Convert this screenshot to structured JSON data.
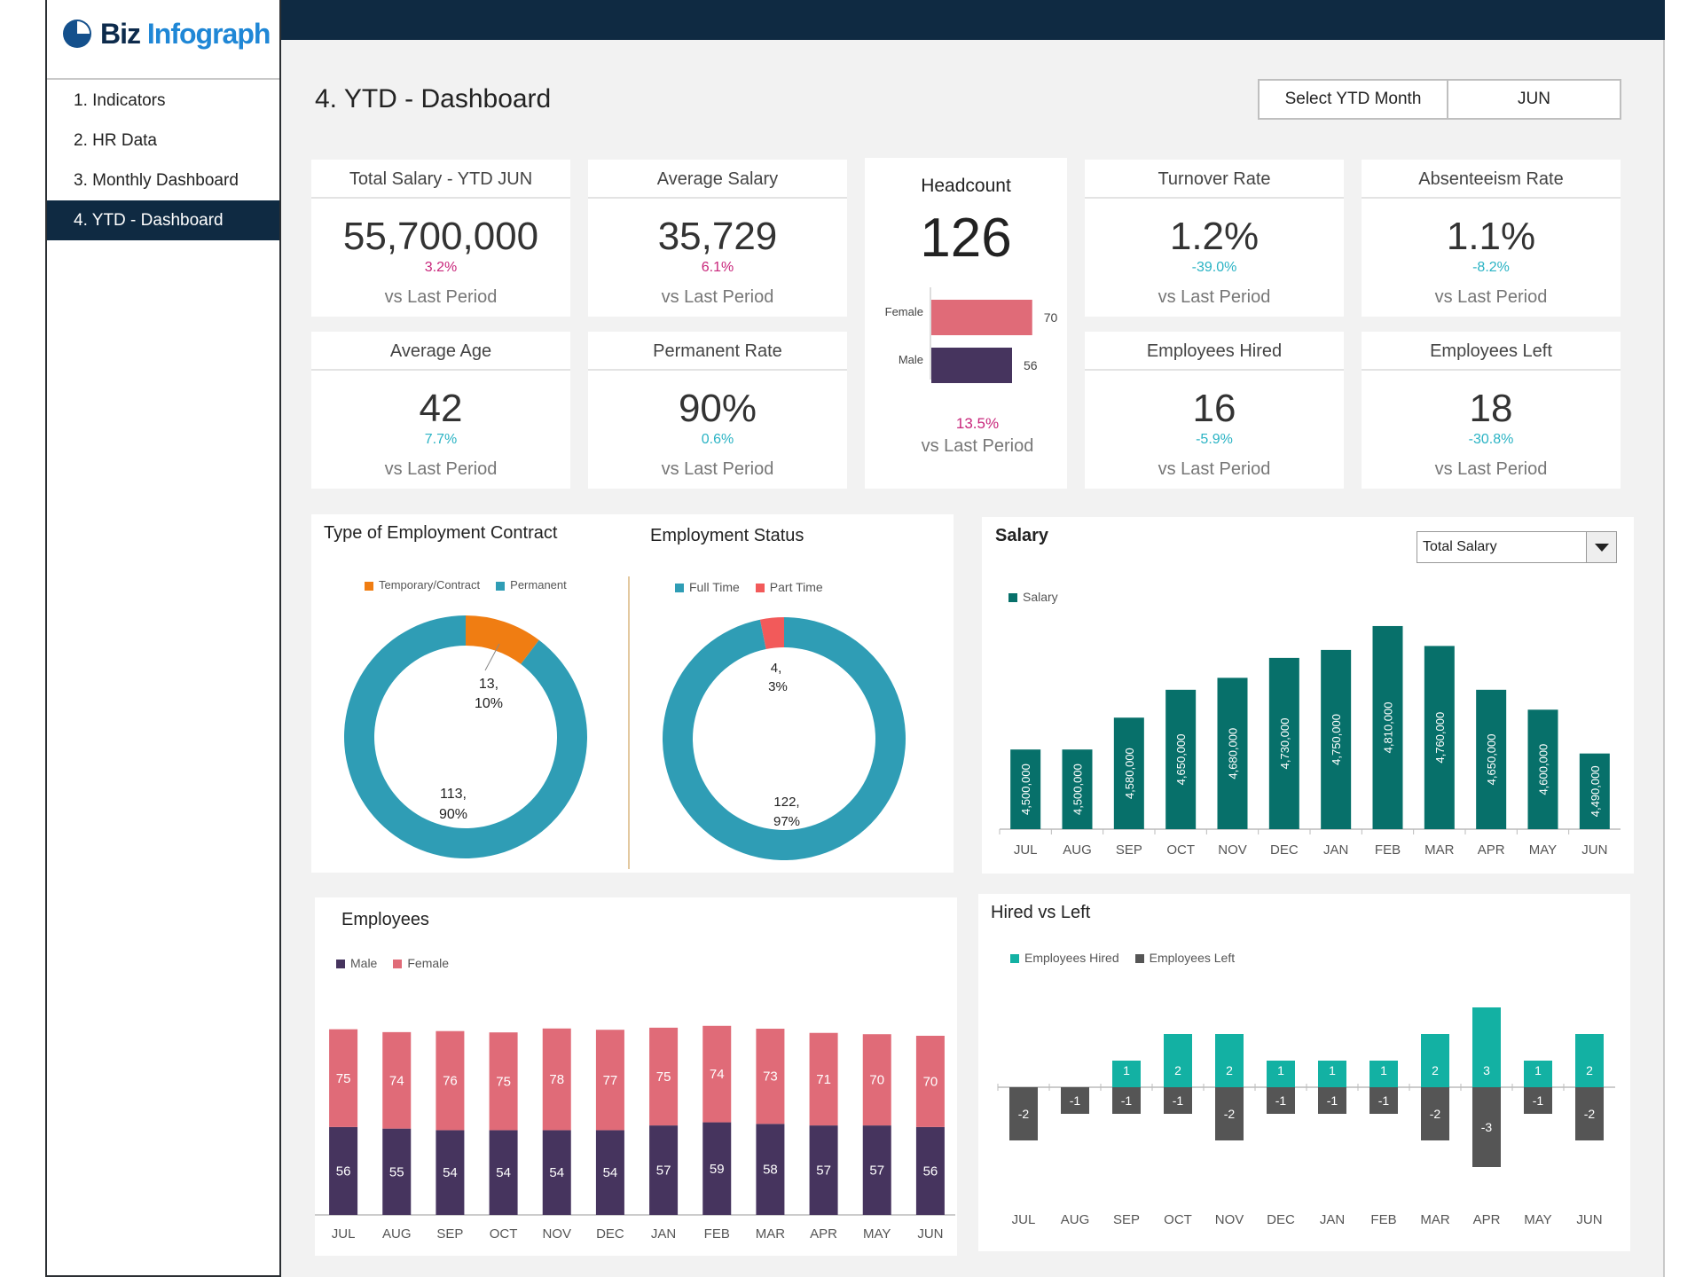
{
  "brand": {
    "name_part1": "Biz",
    "name_part2": "Infograph"
  },
  "nav": {
    "items": [
      {
        "label": "1. Indicators"
      },
      {
        "label": "2. HR Data"
      },
      {
        "label": "3. Monthly Dashboard"
      },
      {
        "label": "4. YTD - Dashboard"
      }
    ],
    "active_index": 3
  },
  "header": {
    "title": "4. YTD - Dashboard",
    "select_label": "Select YTD Month",
    "select_value": "JUN"
  },
  "kpis": {
    "total_salary": {
      "title": "Total Salary - YTD JUN",
      "value": "55,700,000",
      "change": "3.2%",
      "foot": "vs Last Period"
    },
    "average_salary": {
      "title": "Average Salary",
      "value": "35,729",
      "change": "6.1%",
      "foot": "vs Last Period"
    },
    "turnover_rate": {
      "title": "Turnover Rate",
      "value": "1.2%",
      "change": "-39.0%",
      "foot": "vs Last Period"
    },
    "absenteeism_rate": {
      "title": "Absenteeism Rate",
      "value": "1.1%",
      "change": "-8.2%",
      "foot": "vs Last Period"
    },
    "average_age": {
      "title": "Average Age",
      "value": "42",
      "change": "7.7%",
      "foot": "vs Last Period"
    },
    "permanent_rate": {
      "title": "Permanent Rate",
      "value": "90%",
      "change": "0.6%",
      "foot": "vs Last Period"
    },
    "employees_hired": {
      "title": "Employees Hired",
      "value": "16",
      "change": "-5.9%",
      "foot": "vs Last Period"
    },
    "employees_left": {
      "title": "Employees Left",
      "value": "18",
      "change": "-30.8%",
      "foot": "vs Last Period"
    }
  },
  "headcount": {
    "title": "Headcount",
    "value": "126",
    "change": "13.5%",
    "foot": "vs Last Period",
    "bars": [
      {
        "label": "Female",
        "value": 70,
        "value_text": "70",
        "color": "#e06b78"
      },
      {
        "label": "Male",
        "value": 56,
        "value_text": "56",
        "color": "#46345e"
      }
    ]
  },
  "colors": {
    "teal": "#2f9db5",
    "orange": "#f07d12",
    "red": "#f25a5a",
    "dark_teal": "#07706a",
    "bright_teal": "#13b1a3",
    "gray": "#555555",
    "male": "#46345e",
    "female": "#e06b78",
    "pink_change": "#c8267b",
    "teal_change": "#2ab3c4"
  },
  "contract": {
    "title": "Type of Employment Contract",
    "legend": [
      "Temporary/Contract",
      "Permanent"
    ],
    "temp_label_1": "13,",
    "temp_label_2": "10%",
    "perm_label_1": "113,",
    "perm_label_2": "90%"
  },
  "status": {
    "title": "Employment Status",
    "legend": [
      "Full Time",
      "Part Time"
    ],
    "part_label_1": "4,",
    "part_label_2": "3%",
    "full_label_1": "122,",
    "full_label_2": "97%"
  },
  "salary_panel": {
    "title": "Salary",
    "dropdown_value": "Total Salary",
    "legend": "Salary"
  },
  "employees_panel": {
    "title": "Employees",
    "legend": [
      "Male",
      "Female"
    ]
  },
  "hired_left_panel": {
    "title": "Hired vs Left",
    "legend": [
      "Employees Hired",
      "Employees Left"
    ]
  },
  "chart_data": [
    {
      "type": "pie",
      "title": "Type of Employment Contract",
      "categories": [
        "Temporary/Contract",
        "Permanent"
      ],
      "values": [
        13,
        113
      ],
      "percents": [
        10,
        90
      ]
    },
    {
      "type": "pie",
      "title": "Employment Status",
      "categories": [
        "Full Time",
        "Part Time"
      ],
      "values": [
        122,
        4
      ],
      "percents": [
        97,
        3
      ]
    },
    {
      "type": "bar",
      "title": "Salary",
      "series_name": "Salary",
      "categories": [
        "JUL",
        "AUG",
        "SEP",
        "OCT",
        "NOV",
        "DEC",
        "JAN",
        "FEB",
        "MAR",
        "APR",
        "MAY",
        "JUN"
      ],
      "values": [
        4500000,
        4500000,
        4580000,
        4650000,
        4680000,
        4730000,
        4750000,
        4810000,
        4760000,
        4650000,
        4600000,
        4490000
      ],
      "labels": [
        "4,500,000",
        "4,500,000",
        "4,580,000",
        "4,650,000",
        "4,680,000",
        "4,730,000",
        "4,750,000",
        "4,810,000",
        "4,760,000",
        "4,650,000",
        "4,600,000",
        "4,490,000"
      ],
      "ylim": [
        4300000,
        4850000
      ]
    },
    {
      "type": "bar",
      "stacked": true,
      "title": "Employees",
      "categories": [
        "JUL",
        "AUG",
        "SEP",
        "OCT",
        "NOV",
        "DEC",
        "JAN",
        "FEB",
        "MAR",
        "APR",
        "MAY",
        "JUN"
      ],
      "series": [
        {
          "name": "Male",
          "values": [
            56,
            55,
            54,
            54,
            54,
            54,
            57,
            59,
            58,
            57,
            57,
            56
          ]
        },
        {
          "name": "Female",
          "values": [
            75,
            74,
            76,
            75,
            78,
            77,
            75,
            74,
            73,
            71,
            70,
            70
          ]
        }
      ]
    },
    {
      "type": "bar",
      "title": "Hired vs Left",
      "categories": [
        "JUL",
        "AUG",
        "SEP",
        "OCT",
        "NOV",
        "DEC",
        "JAN",
        "FEB",
        "MAR",
        "APR",
        "MAY",
        "JUN"
      ],
      "series": [
        {
          "name": "Employees Hired",
          "values": [
            0,
            0,
            1,
            2,
            2,
            1,
            1,
            1,
            2,
            3,
            1,
            2
          ]
        },
        {
          "name": "Employees Left",
          "values": [
            -2,
            -1,
            -1,
            -1,
            -2,
            -1,
            -1,
            -1,
            -2,
            -3,
            -1,
            -2
          ]
        }
      ],
      "ylim": [
        -4,
        4
      ]
    }
  ]
}
